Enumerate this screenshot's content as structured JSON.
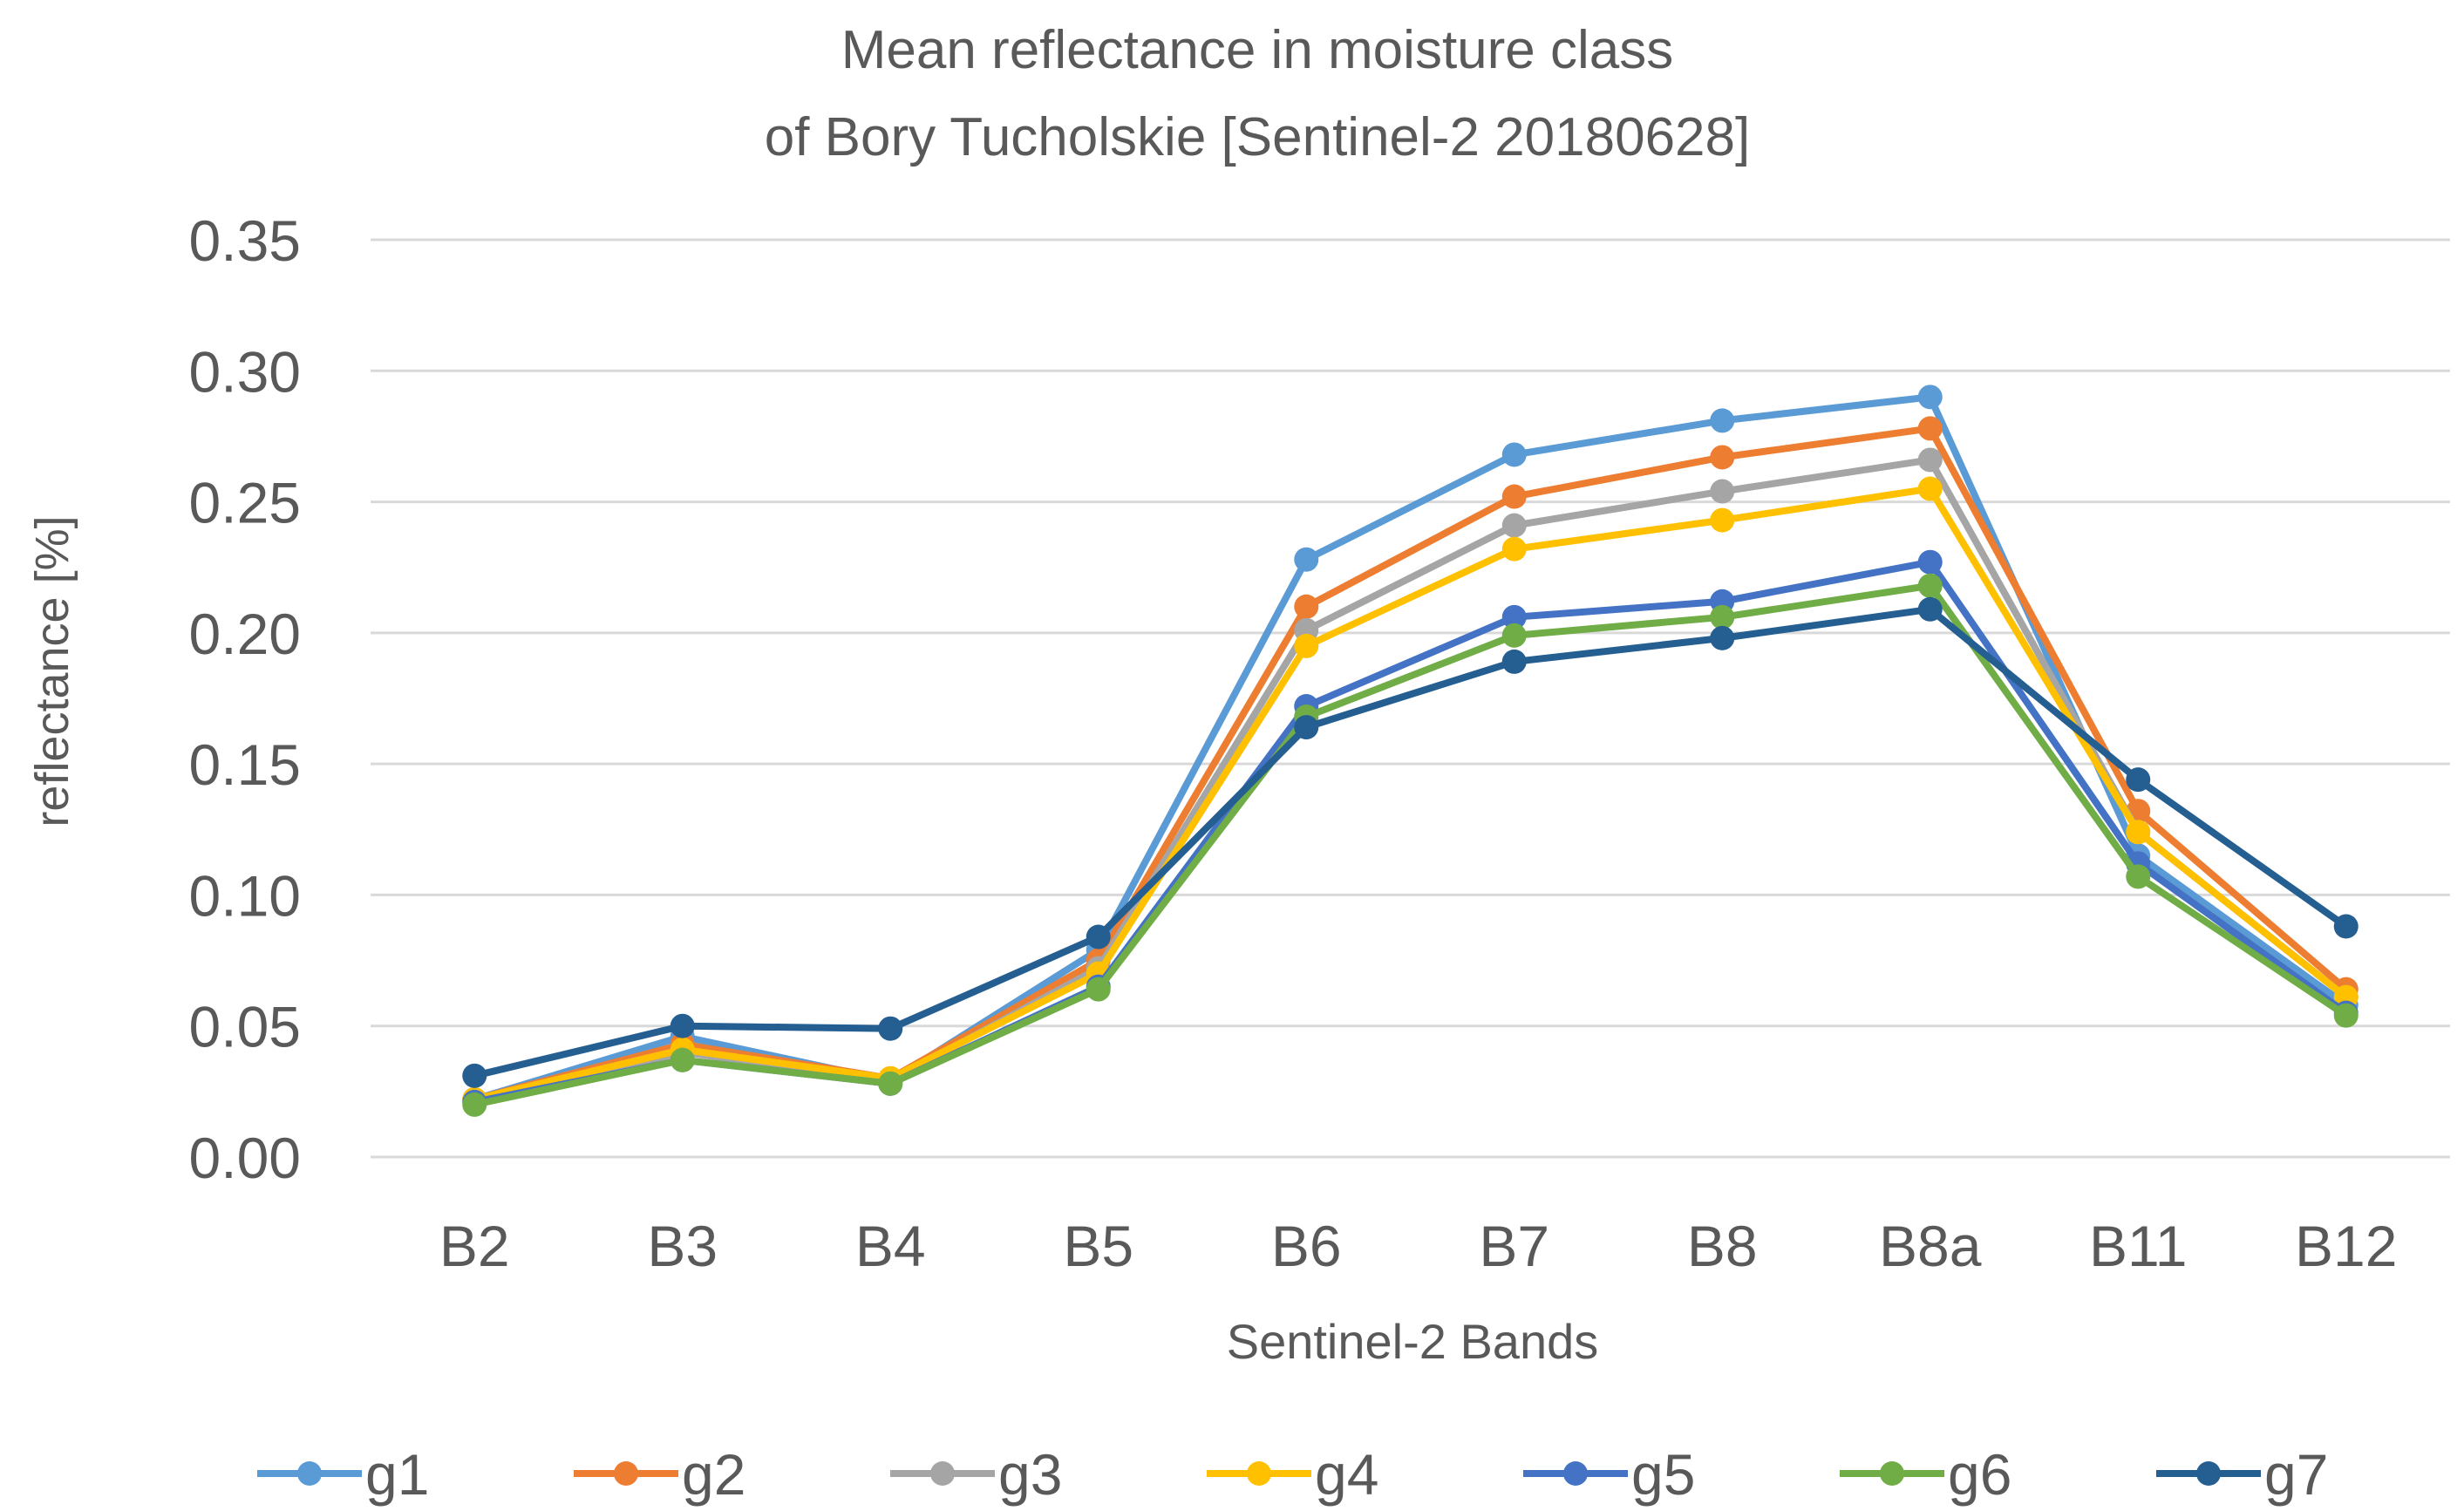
{
  "chart_data": {
    "type": "line",
    "title_line1": "Mean reflectance in moisture class",
    "title_line2": "of Bory Tucholskie [Sentinel-2 20180628]",
    "xlabel": "Sentinel-2 Bands",
    "ylabel": "reflectance [%]",
    "ylim": [
      0,
      0.35
    ],
    "yticks": [
      "0.00",
      "0.05",
      "0.10",
      "0.15",
      "0.20",
      "0.25",
      "0.30",
      "0.35"
    ],
    "grid": true,
    "legend_position": "bottom",
    "categories": [
      "B2",
      "B3",
      "B4",
      "B5",
      "B6",
      "B7",
      "B8",
      "B8a",
      "B11",
      "B12"
    ],
    "series": [
      {
        "name": "g1",
        "color": "#5b9bd5",
        "values": [
          0.022,
          0.046,
          0.029,
          0.079,
          0.228,
          0.268,
          0.281,
          0.29,
          0.115,
          0.058
        ]
      },
      {
        "name": "g2",
        "color": "#ed7d31",
        "values": [
          0.022,
          0.043,
          0.03,
          0.075,
          0.21,
          0.252,
          0.267,
          0.278,
          0.132,
          0.064
        ]
      },
      {
        "name": "g3",
        "color": "#a5a5a5",
        "values": [
          0.021,
          0.04,
          0.029,
          0.072,
          0.201,
          0.241,
          0.254,
          0.266,
          0.124,
          0.061
        ]
      },
      {
        "name": "g4",
        "color": "#ffc000",
        "values": [
          0.022,
          0.041,
          0.03,
          0.07,
          0.195,
          0.232,
          0.243,
          0.255,
          0.124,
          0.061
        ]
      },
      {
        "name": "g5",
        "color": "#4472c4",
        "values": [
          0.021,
          0.037,
          0.028,
          0.065,
          0.172,
          0.206,
          0.212,
          0.227,
          0.112,
          0.055
        ]
      },
      {
        "name": "g6",
        "color": "#70ad47",
        "values": [
          0.02,
          0.037,
          0.028,
          0.064,
          0.168,
          0.199,
          0.206,
          0.218,
          0.107,
          0.054
        ]
      },
      {
        "name": "g7",
        "color": "#255e91",
        "values": [
          0.031,
          0.05,
          0.049,
          0.084,
          0.164,
          0.189,
          0.198,
          0.209,
          0.144,
          0.088
        ]
      }
    ]
  }
}
